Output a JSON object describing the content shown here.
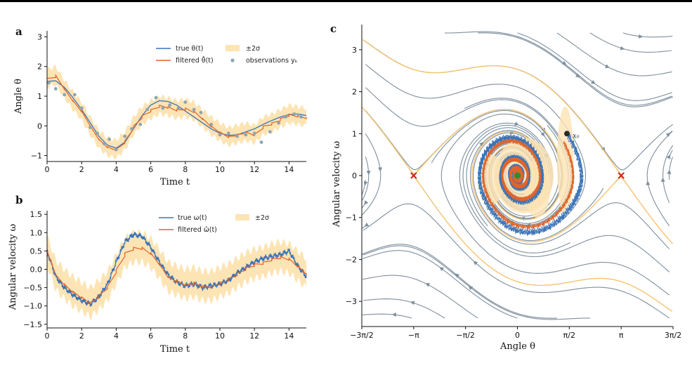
{
  "colors": {
    "true": "#3a73b8",
    "filtered": "#e0642a",
    "band": "#fde4b4",
    "obs": "#8fa5b1",
    "stream": "#7d8f9e",
    "separatrix": "#f5c470",
    "saddle": "#cc2222",
    "stable": "#2e8b3a"
  },
  "panels": {
    "a": {
      "label": "a",
      "xlabel": "Time t",
      "ylabel": "Angle θ",
      "xticks": [
        "0",
        "2",
        "4",
        "6",
        "8",
        "10",
        "12",
        "14"
      ],
      "yticks": [
        "−1",
        "0",
        "1",
        "2",
        "3"
      ],
      "legend": {
        "true": "true θ(t)",
        "filtered": "filtered θ̂(t)",
        "band": "±2σ",
        "obs": "observations yₖ"
      }
    },
    "b": {
      "label": "b",
      "xlabel": "Time t",
      "ylabel": "Angular velocity ω",
      "xticks": [
        "0",
        "2",
        "4",
        "6",
        "8",
        "10",
        "12",
        "14"
      ],
      "yticks": [
        "−1.5",
        "−1.0",
        "−0.5",
        "0.0",
        "0.5",
        "1.0",
        "1.5"
      ],
      "legend": {
        "true": "true ω(t)",
        "filtered": "filtered ω̂(t)",
        "band": "±2σ"
      }
    },
    "c": {
      "label": "c",
      "xlabel": "Angle θ",
      "ylabel": "Angular velocity ω",
      "xticks": [
        "−3π/2",
        "−π",
        "−π/2",
        "0",
        "π/2",
        "π",
        "3π/2"
      ],
      "yticks": [
        "−3",
        "−2",
        "−1",
        "0",
        "1",
        "2",
        "3"
      ],
      "start_label": "x₀"
    }
  },
  "chart_data": [
    {
      "panel": "a",
      "type": "line",
      "xlim": [
        0,
        15
      ],
      "ylim": [
        -1.2,
        3.2
      ],
      "series": [
        {
          "name": "true θ(t)",
          "x": [
            0,
            0.5,
            1,
            1.5,
            2,
            2.5,
            3,
            3.5,
            4,
            4.5,
            5,
            5.5,
            6,
            6.5,
            7,
            7.5,
            8,
            8.5,
            9,
            9.5,
            10,
            10.5,
            11,
            11.5,
            12,
            12.5,
            13,
            13.5,
            14,
            14.5,
            15
          ],
          "y": [
            1.5,
            1.52,
            1.3,
            0.95,
            0.55,
            0.1,
            -0.35,
            -0.65,
            -0.75,
            -0.55,
            -0.1,
            0.35,
            0.7,
            0.85,
            0.82,
            0.7,
            0.5,
            0.3,
            0.1,
            -0.1,
            -0.25,
            -0.32,
            -0.3,
            -0.2,
            -0.1,
            0.05,
            0.18,
            0.3,
            0.38,
            0.4,
            0.35
          ]
        },
        {
          "name": "filtered θ̂(t)",
          "x": [
            0,
            0.5,
            1,
            1.5,
            2,
            2.5,
            3,
            3.5,
            4,
            4.5,
            5,
            5.5,
            6,
            6.5,
            7,
            7.5,
            8,
            8.5,
            9,
            9.5,
            10,
            10.5,
            11,
            11.5,
            12,
            12.5,
            13,
            13.5,
            14,
            14.5,
            15
          ],
          "y": [
            1.6,
            1.7,
            1.25,
            0.85,
            0.5,
            0.0,
            -0.45,
            -0.7,
            -0.78,
            -0.5,
            0.0,
            0.35,
            0.55,
            0.7,
            0.65,
            0.55,
            0.6,
            0.5,
            0.25,
            0.0,
            -0.2,
            -0.35,
            -0.28,
            -0.2,
            -0.28,
            0.0,
            0.1,
            0.25,
            0.4,
            0.35,
            0.3
          ]
        },
        {
          "name": "observations yₖ",
          "x": [
            0.1,
            0.5,
            1.0,
            1.6,
            2.0,
            2.5,
            2.9,
            3.3,
            3.6,
            4.0,
            4.5,
            4.9,
            5.4,
            5.8,
            6.3,
            6.7,
            7.1,
            7.6,
            8.0,
            8.5,
            8.9,
            9.5,
            10.0,
            10.5,
            11.0,
            11.5,
            12.0,
            12.4,
            12.9,
            13.4,
            13.8,
            14.3,
            14.7
          ],
          "y": [
            1.45,
            1.25,
            1.05,
            1.05,
            0.6,
            -0.05,
            -0.25,
            -0.6,
            -0.45,
            -0.8,
            -0.35,
            -0.1,
            0.05,
            0.55,
            0.95,
            0.6,
            0.7,
            0.6,
            0.8,
            0.55,
            0.45,
            0.05,
            -0.3,
            -0.25,
            -0.35,
            -0.3,
            -0.25,
            -0.55,
            -0.2,
            0.1,
            0.3,
            0.4,
            0.3
          ]
        }
      ]
    },
    {
      "panel": "b",
      "type": "line",
      "xlim": [
        0,
        15
      ],
      "ylim": [
        -1.6,
        1.6
      ],
      "series": [
        {
          "name": "true ω(t)",
          "x": [
            0,
            0.5,
            1,
            1.5,
            2,
            2.5,
            3,
            3.5,
            4,
            4.5,
            5,
            5.5,
            6,
            6.5,
            7,
            7.5,
            8,
            8.5,
            9,
            9.5,
            10,
            10.5,
            11,
            11.5,
            12,
            12.5,
            13,
            13.5,
            14,
            14.5,
            15
          ],
          "y": [
            0.5,
            -0.2,
            -0.5,
            -0.7,
            -0.85,
            -0.95,
            -0.75,
            -0.4,
            0.2,
            0.75,
            0.95,
            0.9,
            0.6,
            0.2,
            -0.15,
            -0.35,
            -0.45,
            -0.4,
            -0.5,
            -0.45,
            -0.4,
            -0.3,
            -0.1,
            0.05,
            0.2,
            0.3,
            0.35,
            0.4,
            0.5,
            0.1,
            -0.2
          ]
        },
        {
          "name": "filtered ω̂(t)",
          "x": [
            0,
            0.5,
            1,
            1.5,
            2,
            2.5,
            3,
            3.5,
            4,
            4.5,
            5,
            5.5,
            6,
            6.5,
            7,
            7.5,
            8,
            8.5,
            9,
            9.5,
            10,
            10.5,
            11,
            11.5,
            12,
            12.5,
            13,
            13.5,
            14,
            14.5,
            15
          ],
          "y": [
            0.5,
            -0.15,
            -0.4,
            -0.6,
            -0.75,
            -0.9,
            -0.7,
            -0.45,
            0.0,
            0.45,
            0.6,
            0.6,
            0.45,
            0.15,
            -0.2,
            -0.3,
            -0.4,
            -0.35,
            -0.45,
            -0.45,
            -0.35,
            -0.25,
            -0.1,
            0.05,
            0.15,
            0.2,
            0.3,
            0.35,
            0.3,
            0.1,
            -0.1
          ]
        }
      ]
    },
    {
      "panel": "c",
      "type": "line",
      "xlim": [
        -4.712,
        4.712
      ],
      "ylim": [
        -3.6,
        3.6
      ],
      "series": [
        {
          "name": "saddle points",
          "x": [
            -3.1416,
            3.1416
          ],
          "y": [
            0,
            0
          ]
        },
        {
          "name": "stable equilibrium",
          "x": [
            0
          ],
          "y": [
            0
          ]
        },
        {
          "name": "x₀",
          "x": [
            1.5
          ],
          "y": [
            1.0
          ]
        }
      ]
    }
  ]
}
